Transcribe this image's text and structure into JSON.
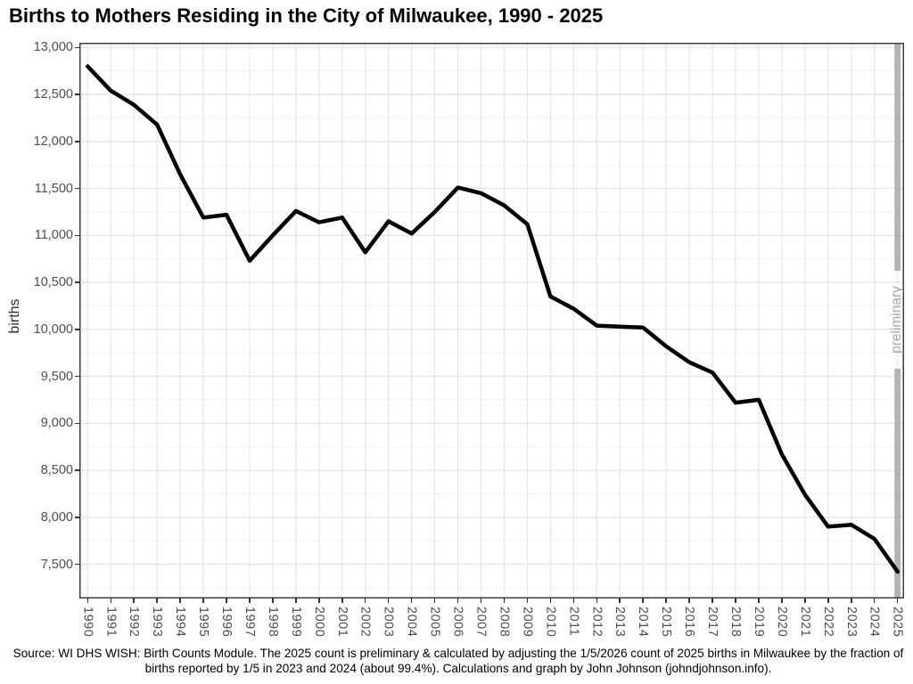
{
  "title": "Births to Mothers Residing in the City of Milwaukee, 1990 - 2025",
  "caption": "Source: WI DHS WISH: Birth Counts Module. The 2025 count is preliminary & calculated by adjusting the 1/5/2026 count of 2025 births in Milwaukee by the fraction of births reported by 1/5 in 2023 and 2024 (about 99.4%). Calculations and graph by John Johnson (johndjohnson.info).",
  "annotation": {
    "label": "preliminary",
    "year": 2025,
    "bar_color": "#b4b4b4",
    "text_color": "#a8a8a8"
  },
  "colors": {
    "line": "#000000",
    "grid_major": "#e6e6e6",
    "grid_minor": "#f2f2f2",
    "panel_border": "#3d3d3d",
    "axis_text": "#4d4d4d",
    "background": "#ffffff"
  },
  "chart_data": {
    "type": "line",
    "title": "Births to Mothers Residing in the City of Milwaukee, 1990 - 2025",
    "xlabel": "",
    "ylabel": "births",
    "grid": "on",
    "legend": "none",
    "x": [
      1990,
      1991,
      1992,
      1993,
      1994,
      1995,
      1996,
      1997,
      1998,
      1999,
      2000,
      2001,
      2002,
      2003,
      2004,
      2005,
      2006,
      2007,
      2008,
      2009,
      2010,
      2011,
      2012,
      2013,
      2014,
      2015,
      2016,
      2017,
      2018,
      2019,
      2020,
      2021,
      2022,
      2023,
      2024,
      2025
    ],
    "values": [
      12800,
      12540,
      12390,
      12180,
      11650,
      11190,
      11220,
      10730,
      11000,
      11260,
      11140,
      11190,
      10820,
      11150,
      11020,
      11250,
      11510,
      11450,
      11320,
      11120,
      10350,
      10220,
      10040,
      10030,
      10020,
      9820,
      9650,
      9540,
      9220,
      9250,
      8670,
      8240,
      7900,
      7920,
      7770,
      7420
    ],
    "xlim": [
      1989.6,
      2025.4
    ],
    "ylim": [
      7130,
      13050
    ],
    "yticks": [
      7500,
      8000,
      8500,
      9000,
      9500,
      10000,
      10500,
      11000,
      11500,
      12000,
      12500,
      13000
    ],
    "ytick_labels": [
      "7,500",
      "8,000",
      "8,500",
      "9,000",
      "9,500",
      "10,000",
      "10,500",
      "11,000",
      "11,500",
      "12,000",
      "12,500",
      "13,000"
    ],
    "ytick_minor": [
      7250,
      7750,
      8250,
      8750,
      9250,
      9750,
      10250,
      10750,
      11250,
      11750,
      12250,
      12750
    ],
    "line_width": 4.5
  }
}
